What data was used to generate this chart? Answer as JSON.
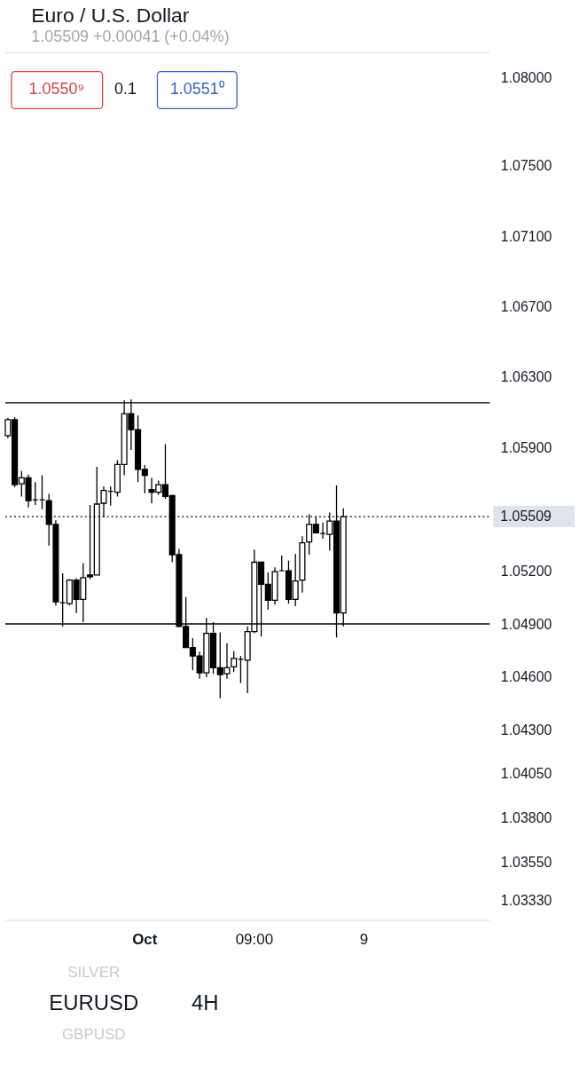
{
  "chart_data": {
    "type": "candlestick",
    "title": "Euro / U.S. Dollar",
    "subtitle": "1.05509 +0.00041 (+0.04%)",
    "categories": [
      null,
      null,
      null,
      null,
      null,
      null,
      null,
      null,
      null,
      null,
      null,
      null,
      null,
      null,
      null,
      null,
      null,
      null,
      null,
      null,
      "Oct",
      null,
      null,
      null,
      null,
      null,
      null,
      null,
      null,
      null,
      null,
      null,
      null,
      null,
      null,
      null,
      "09:00",
      null,
      null,
      null,
      null,
      null,
      null,
      null,
      null,
      null,
      null,
      null,
      null,
      null,
      null,
      null,
      "9",
      null,
      null,
      null,
      null,
      null,
      null,
      null,
      null,
      null,
      null,
      null,
      null,
      null,
      null,
      null,
      null,
      null,
      null
    ],
    "ohlc": [
      [
        1.05968,
        1.06069,
        1.05954,
        1.06059
      ],
      [
        1.06059,
        1.06074,
        1.05676,
        1.0569
      ],
      [
        1.05695,
        1.05767,
        1.05623,
        1.05729
      ],
      [
        1.05729,
        1.05748,
        1.05561,
        1.05599
      ],
      [
        1.05604,
        1.05705,
        1.05575,
        1.05604
      ],
      [
        1.05604,
        1.05743,
        1.05551,
        1.05604
      ],
      [
        1.05599,
        1.05638,
        1.05345,
        1.05465
      ],
      [
        1.05465,
        1.05489,
        1.05005,
        1.05025
      ],
      [
        1.0502,
        1.05187,
        1.04886,
        1.0502
      ],
      [
        1.05015,
        1.05154,
        1.05005,
        1.05149
      ],
      [
        1.05149,
        1.05159,
        1.04962,
        1.05039
      ],
      [
        1.05039,
        1.05245,
        1.0491,
        1.05163
      ],
      [
        1.05178,
        1.05575,
        1.05154,
        1.05168
      ],
      [
        1.05178,
        1.05791,
        1.05178,
        1.0558
      ],
      [
        1.05585,
        1.05681,
        1.05504,
        1.05657
      ],
      [
        1.05652,
        1.05681,
        1.05571,
        1.05652
      ],
      [
        1.05647,
        1.05829,
        1.05623,
        1.05805
      ],
      [
        1.05805,
        1.06169,
        1.05743,
        1.06093
      ],
      [
        1.06093,
        1.06174,
        1.05887,
        1.06002
      ],
      [
        1.06002,
        1.06083,
        1.05705,
        1.05777
      ],
      [
        1.05777,
        1.05801,
        1.05642,
        1.05743
      ],
      [
        1.05662,
        1.05729,
        1.05585,
        1.05647
      ],
      [
        1.05647,
        1.05714,
        1.05633,
        1.0569
      ],
      [
        1.0569,
        1.0592,
        1.05609,
        1.05623
      ],
      [
        1.05628,
        1.05633,
        1.0525,
        1.05293
      ],
      [
        1.05293,
        1.05326,
        1.04881,
        1.04886
      ],
      [
        1.04886,
        1.05053,
        1.04766,
        1.04766
      ],
      [
        1.04766,
        1.04819,
        1.04637,
        1.04718
      ],
      [
        1.04718,
        1.04742,
        1.04589,
        1.04622
      ],
      [
        1.04622,
        1.04934,
        1.04598,
        1.04847
      ],
      [
        1.04847,
        1.0491,
        1.04617,
        1.04651
      ],
      [
        1.04651,
        1.04852,
        1.04478,
        1.04613
      ],
      [
        1.04617,
        1.0479,
        1.04589,
        1.04651
      ],
      [
        1.04656,
        1.04747,
        1.04627,
        1.04704
      ],
      [
        1.04699,
        1.04718,
        1.04565,
        1.04699
      ],
      [
        1.04694,
        1.04886,
        1.04507,
        1.04857
      ],
      [
        1.04857,
        1.05322,
        1.04847,
        1.0525
      ],
      [
        1.0525,
        1.05254,
        1.04828,
        1.05125
      ],
      [
        1.05125,
        1.05192,
        1.04981,
        1.05034
      ],
      [
        1.05034,
        1.05221,
        1.0501,
        1.05197
      ],
      [
        1.05202,
        1.05288,
        1.05202,
        1.05202
      ],
      [
        1.05202,
        1.05259,
        1.05015,
        1.05039
      ],
      [
        1.05039,
        1.05298,
        1.05001,
        1.05144
      ],
      [
        1.05149,
        1.05398,
        1.05077,
        1.0536
      ],
      [
        1.05365,
        1.05523,
        1.05293,
        1.05465
      ],
      [
        1.05465,
        1.05508,
        1.05413,
        1.05417
      ],
      [
        1.05413,
        1.05475,
        1.05384,
        1.05413
      ],
      [
        1.05408,
        1.05532,
        1.05317,
        1.05484
      ],
      [
        1.05484,
        1.05686,
        1.04823,
        1.04962
      ],
      [
        1.04962,
        1.05556,
        1.04886,
        1.05509
      ],
      null,
      null,
      null,
      null,
      null,
      null,
      null,
      null,
      null,
      null,
      null,
      null,
      null,
      null,
      null,
      null,
      null,
      null,
      null,
      null,
      null
    ],
    "ylim": [
      1.0322,
      1.0814
    ],
    "yticks": [
      {
        "value": 1.08,
        "label": "1.08000"
      },
      {
        "value": 1.075,
        "label": "1.07500"
      },
      {
        "value": 1.071,
        "label": "1.07100"
      },
      {
        "value": 1.067,
        "label": "1.06700"
      },
      {
        "value": 1.063,
        "label": "1.06300"
      },
      {
        "value": 1.059,
        "label": "1.05900"
      },
      {
        "value": 1.052,
        "label": "1.05200"
      },
      {
        "value": 1.049,
        "label": "1.04900"
      },
      {
        "value": 1.046,
        "label": "1.04600"
      },
      {
        "value": 1.043,
        "label": "1.04300"
      },
      {
        "value": 1.0405,
        "label": "1.04050"
      },
      {
        "value": 1.038,
        "label": "1.03800"
      },
      {
        "value": 1.0355,
        "label": "1.03550"
      },
      {
        "value": 1.0333,
        "label": "1.03330"
      }
    ],
    "ref_lines": [
      {
        "axis": "y",
        "value": 1.06155,
        "color": "#000000",
        "line_style": "solid"
      },
      {
        "axis": "y",
        "value": 1.049,
        "color": "#000000",
        "line_style": "solid"
      },
      {
        "axis": "y",
        "value": 1.05509,
        "label": "1.05509",
        "color": "#000000",
        "line_style": "dotted"
      }
    ],
    "annotations": [
      "1.0550⁹",
      "0.1",
      "1.0551⁰",
      "SILVER",
      "EURUSD",
      "4H",
      "GBPUSD"
    ],
    "grid": false
  }
}
